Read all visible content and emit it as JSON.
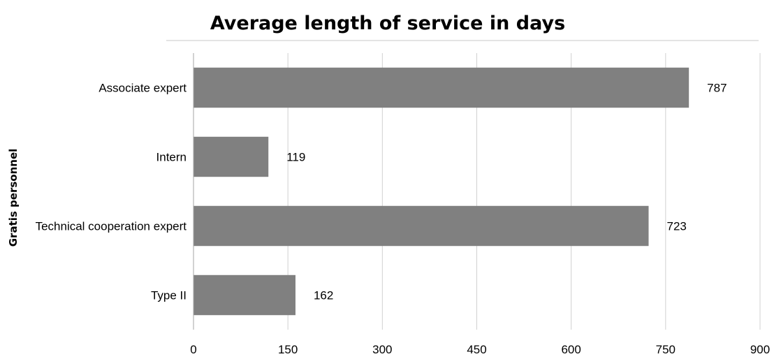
{
  "chart_data": {
    "type": "bar",
    "orientation": "horizontal",
    "title": "Average length of service in days",
    "xlabel": "",
    "ylabel": "Gratis personnel",
    "categories": [
      "Associate expert",
      "Intern",
      "Technical cooperation expert",
      "Type II"
    ],
    "values": [
      787,
      119,
      723,
      162
    ],
    "xlim": [
      0,
      900
    ],
    "xticks": [
      0,
      150,
      300,
      450,
      600,
      750,
      900
    ],
    "grid": "vertical",
    "legend": "none",
    "data_labels": true,
    "colors": {
      "bar": "#808080",
      "grid": "#d0d0d0",
      "axis": "#a6a6a6"
    }
  }
}
